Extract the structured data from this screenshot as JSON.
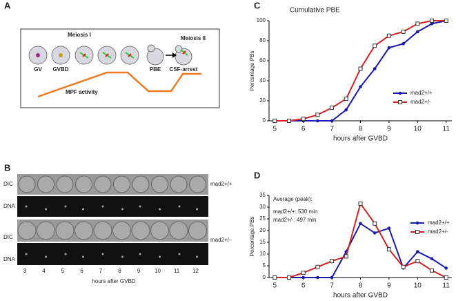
{
  "panel_labels": [
    "A",
    "B",
    "C",
    "D"
  ],
  "diagram": {
    "meiosis1": "Meiosis I",
    "meiosis2": "Meiosis II",
    "stages": [
      "GV",
      "GVBD",
      "PBE",
      "CSF-arrest"
    ],
    "mpf": "MPF activity"
  },
  "microscopy": {
    "rows": [
      "DIC",
      "DNA",
      "DIC",
      "DNA"
    ],
    "genotypes": [
      "mad2+/+",
      "mad2+/-"
    ],
    "times": [
      3,
      4,
      5,
      6,
      7,
      8,
      9,
      10,
      11,
      12
    ],
    "xlabel": "hours after GVBD"
  },
  "chart_data": [
    {
      "type": "line",
      "title": "Cumulative PBE",
      "xlabel": "hours after GVBD",
      "ylabel": "Percentage PBs",
      "x": [
        5,
        5.5,
        6,
        6.5,
        7,
        7.5,
        8,
        8.5,
        9,
        9.5,
        10,
        10.5,
        11
      ],
      "series": [
        {
          "name": "mad2+/+",
          "color": "#1a1aa8",
          "marker": "circle",
          "values": [
            0,
            0,
            0,
            0,
            0,
            11,
            34,
            52,
            73,
            77,
            89,
            97,
            100
          ]
        },
        {
          "name": "mad2+/-",
          "color": "#d42020",
          "marker": "square",
          "values": [
            0,
            0,
            2,
            6,
            13,
            22,
            52,
            75,
            85,
            89,
            97,
            100,
            100
          ]
        }
      ],
      "xlim": [
        4.8,
        11.2
      ],
      "xticks": [
        5,
        6,
        7,
        8,
        9,
        10,
        11
      ],
      "ylim": [
        0,
        100
      ],
      "yticks": [
        0,
        20,
        40,
        60,
        80,
        100
      ],
      "legend": "lower right"
    },
    {
      "type": "line",
      "xlabel": "hours after GVBD",
      "ylabel": "Percentage PBs",
      "annotations": [
        "Average (peak):",
        "mad2+/+: 530 min",
        "mad2+/-: 497 min"
      ],
      "x": [
        5,
        5.5,
        6,
        6.5,
        7,
        7.5,
        8,
        8.5,
        9,
        9.5,
        10,
        10.5,
        11
      ],
      "series": [
        {
          "name": "mad2+/+",
          "color": "#1a1aa8",
          "marker": "circle",
          "values": [
            0,
            0,
            0,
            0,
            0,
            11,
            23,
            19,
            21,
            4,
            11,
            8,
            4
          ]
        },
        {
          "name": "mad2+/-",
          "color": "#d42020",
          "marker": "square",
          "values": [
            0,
            0,
            2,
            4.5,
            7,
            9,
            31.5,
            23,
            12,
            4.5,
            7,
            3,
            0
          ]
        }
      ],
      "xlim": [
        4.8,
        11.2
      ],
      "xticks": [
        5,
        6,
        7,
        8,
        9,
        10,
        11
      ],
      "ylim": [
        0,
        35
      ],
      "yticks": [
        0,
        5,
        10,
        15,
        20,
        25,
        30,
        35
      ],
      "legend": "upper right"
    }
  ]
}
